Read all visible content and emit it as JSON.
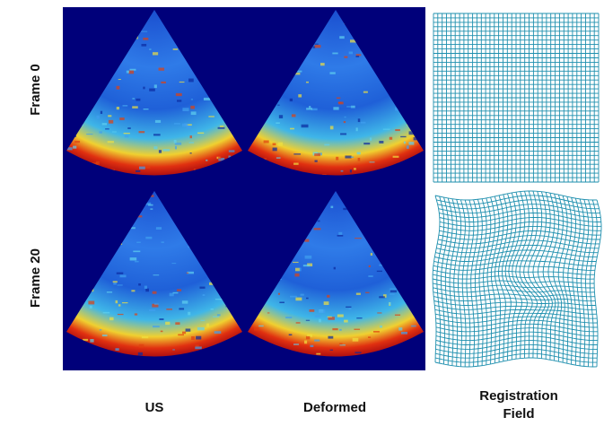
{
  "rows": [
    "Frame 0",
    "Frame 20"
  ],
  "columns": [
    "US",
    "Deformed",
    "Registration Field"
  ]
}
